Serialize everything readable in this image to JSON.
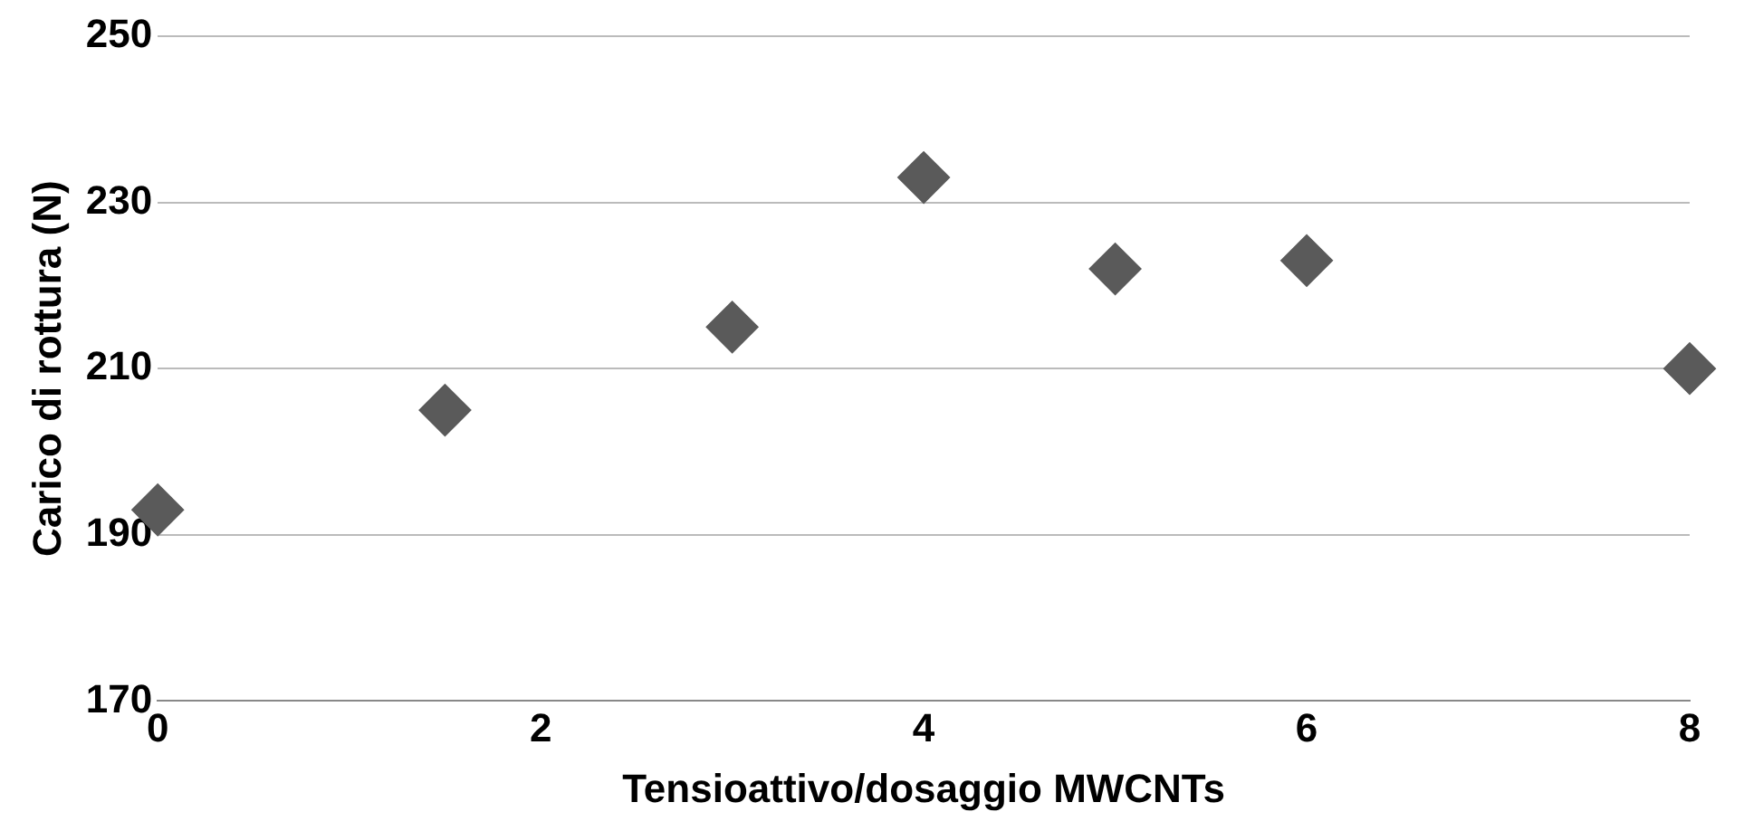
{
  "chart_data": {
    "type": "scatter",
    "xlabel": "Tensioattivo/dosaggio MWCNTs",
    "ylabel": "Carico di rottura (N)",
    "x": [
      0,
      1.5,
      3,
      4,
      5,
      6,
      8
    ],
    "series": [
      {
        "color": "#5a5a5a",
        "values": [
          193,
          205,
          215,
          233,
          222,
          223,
          210
        ]
      }
    ],
    "xlim": [
      0,
      8
    ],
    "xticks": [
      0,
      2,
      4,
      6,
      8
    ],
    "ylim": [
      170,
      250
    ],
    "yticks": [
      170,
      190,
      210,
      230,
      250
    ],
    "grid": "y",
    "legend": false,
    "marker": "diamond"
  }
}
